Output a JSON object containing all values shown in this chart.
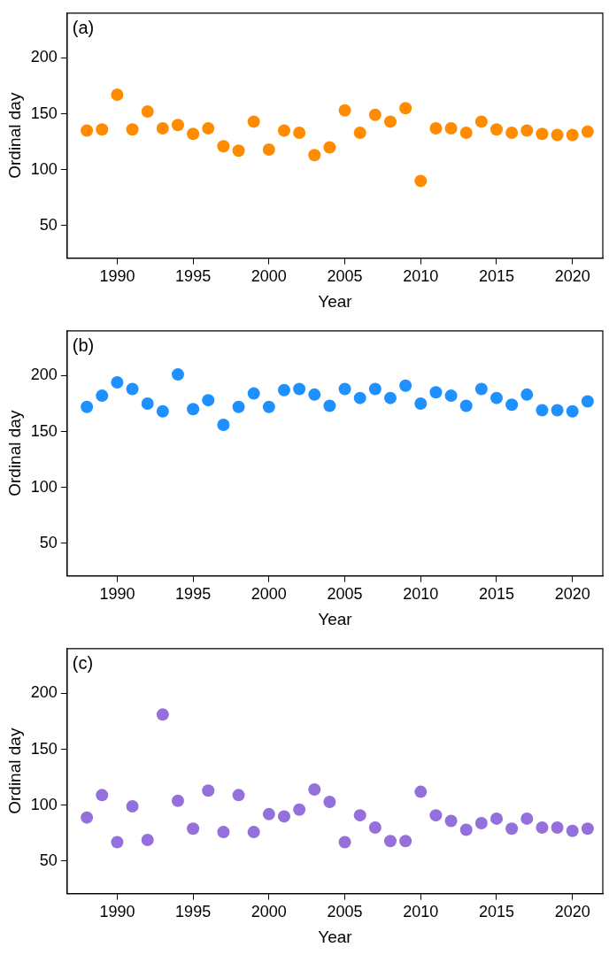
{
  "chart_data": [
    {
      "type": "scatter",
      "annotations": [
        "(a)"
      ],
      "xlabel": "Year",
      "ylabel": "Ordinal day",
      "x": [
        1988,
        1989,
        1990,
        1991,
        1992,
        1993,
        1994,
        1995,
        1996,
        1997,
        1998,
        1999,
        2000,
        2001,
        2002,
        2003,
        2004,
        2005,
        2006,
        2007,
        2008,
        2009,
        2010,
        2011,
        2012,
        2013,
        2014,
        2015,
        2016,
        2017,
        2018,
        2019,
        2020,
        2021
      ],
      "series": [
        {
          "color": "#ff8c00",
          "values": [
            135,
            136,
            167,
            136,
            152,
            137,
            140,
            132,
            137,
            121,
            117,
            143,
            118,
            135,
            133,
            113,
            120,
            153,
            133,
            149,
            143,
            155,
            90,
            137,
            137,
            133,
            143,
            136,
            133,
            135,
            132,
            131,
            131,
            134
          ]
        }
      ],
      "xlim": [
        1986.7,
        2022
      ],
      "ylim": [
        21,
        240
      ],
      "xticks": [
        1990,
        1995,
        2000,
        2005,
        2010,
        2015,
        2020
      ],
      "yticks": [
        50,
        100,
        150,
        200
      ],
      "marker": "circle",
      "grid": false,
      "legend": false
    },
    {
      "type": "scatter",
      "annotations": [
        "(b)"
      ],
      "xlabel": "Year",
      "ylabel": "Ordinal day",
      "x": [
        1988,
        1989,
        1990,
        1991,
        1992,
        1993,
        1994,
        1995,
        1996,
        1997,
        1998,
        1999,
        2000,
        2001,
        2002,
        2003,
        2004,
        2005,
        2006,
        2007,
        2008,
        2009,
        2010,
        2011,
        2012,
        2013,
        2014,
        2015,
        2016,
        2017,
        2018,
        2019,
        2020,
        2021
      ],
      "series": [
        {
          "color": "#1e90ff",
          "values": [
            172,
            182,
            194,
            188,
            175,
            168,
            201,
            170,
            178,
            156,
            172,
            184,
            172,
            187,
            188,
            183,
            173,
            188,
            180,
            188,
            180,
            191,
            175,
            185,
            182,
            173,
            188,
            180,
            174,
            183,
            169,
            169,
            168,
            177
          ]
        }
      ],
      "xlim": [
        1986.7,
        2022
      ],
      "ylim": [
        21,
        240
      ],
      "xticks": [
        1990,
        1995,
        2000,
        2005,
        2010,
        2015,
        2020
      ],
      "yticks": [
        50,
        100,
        150,
        200
      ],
      "marker": "circle",
      "grid": false,
      "legend": false
    },
    {
      "type": "scatter",
      "annotations": [
        "(c)"
      ],
      "xlabel": "Year",
      "ylabel": "Ordinal day",
      "x": [
        1988,
        1989,
        1990,
        1991,
        1992,
        1993,
        1994,
        1995,
        1996,
        1997,
        1998,
        1999,
        2000,
        2001,
        2002,
        2003,
        2004,
        2005,
        2006,
        2007,
        2008,
        2009,
        2010,
        2011,
        2012,
        2013,
        2014,
        2015,
        2016,
        2017,
        2018,
        2019,
        2020,
        2021
      ],
      "series": [
        {
          "color": "#9370db",
          "values": [
            89,
            109,
            67,
            99,
            69,
            181,
            104,
            79,
            113,
            76,
            109,
            76,
            92,
            90,
            96,
            114,
            103,
            67,
            91,
            80,
            68,
            68,
            112,
            91,
            86,
            78,
            84,
            88,
            79,
            88,
            80,
            80,
            77,
            79
          ]
        }
      ],
      "xlim": [
        1986.7,
        2022
      ],
      "ylim": [
        21,
        240
      ],
      "xticks": [
        1990,
        1995,
        2000,
        2005,
        2010,
        2015,
        2020
      ],
      "yticks": [
        50,
        100,
        150,
        200
      ],
      "marker": "circle",
      "grid": false,
      "legend": false
    }
  ]
}
